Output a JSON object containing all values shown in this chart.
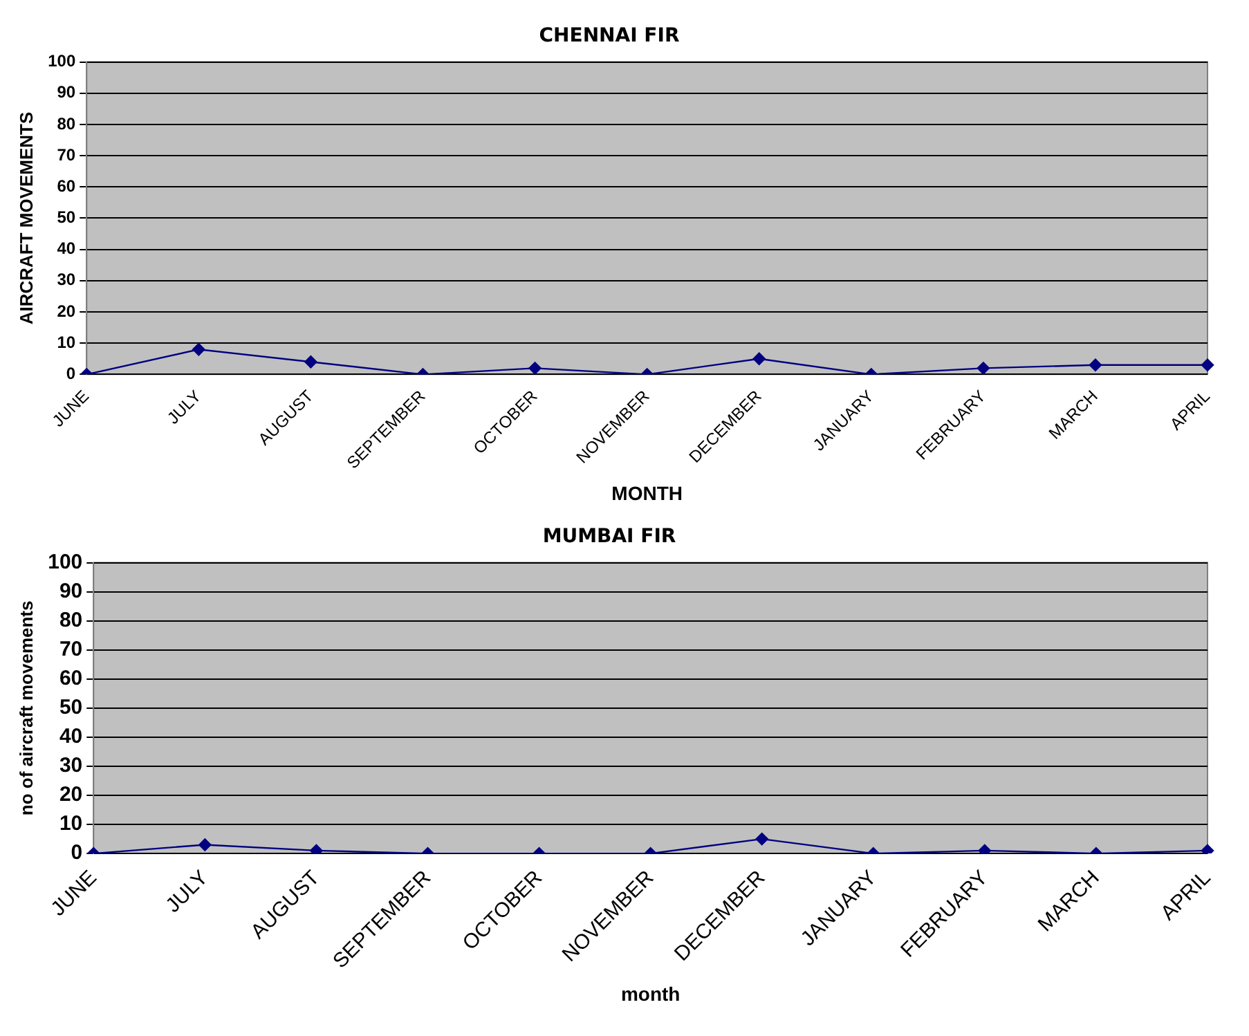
{
  "chart_data": [
    {
      "type": "line",
      "title": "CHENNAI FIR",
      "xlabel": "MONTH",
      "ylabel": "AIRCRAFT MOVEMENTS",
      "categories": [
        "JUNE",
        "JULY",
        "AUGUST",
        "SEPTEMBER",
        "OCTOBER",
        "NOVEMBER",
        "DECEMBER",
        "JANUARY",
        "FEBRUARY",
        "MARCH",
        "APRIL"
      ],
      "series": [
        {
          "color": "#000080",
          "values": [
            0,
            8,
            4,
            0,
            2,
            0,
            5,
            0,
            2,
            3,
            3
          ]
        }
      ],
      "ylim": [
        0,
        100
      ],
      "yticks": [
        0,
        10,
        20,
        30,
        40,
        50,
        60,
        70,
        80,
        90,
        100
      ],
      "grid": "y",
      "marker": "diamond",
      "legend": false
    },
    {
      "type": "line",
      "title": "MUMBAI FIR",
      "xlabel": "month",
      "ylabel": "no of aircraft movements",
      "categories": [
        "JUNE",
        "JULY",
        "AUGUST",
        "SEPTEMBER",
        "OCTOBER",
        "NOVEMBER",
        "DECEMBER",
        "JANUARY",
        "FEBRUARY",
        "MARCH",
        "APRIL"
      ],
      "series": [
        {
          "color": "#000080",
          "values": [
            0,
            3,
            1,
            0,
            0,
            0,
            5,
            0,
            1,
            0,
            1
          ]
        }
      ],
      "ylim": [
        0,
        100
      ],
      "yticks": [
        0,
        10,
        20,
        30,
        40,
        50,
        60,
        70,
        80,
        90,
        100
      ],
      "grid": "y",
      "marker": "diamond",
      "legend": false
    }
  ]
}
